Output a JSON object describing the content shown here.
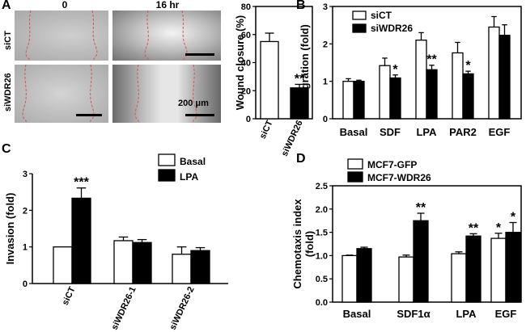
{
  "panel_letters": [
    "A",
    "B",
    "C",
    "D"
  ],
  "micrographs": {
    "time_labels": [
      "0",
      "16 hr"
    ],
    "row_labels": [
      "siCT",
      "siWDR26"
    ],
    "scale_label": "200 μm"
  },
  "chart_data": [
    {
      "id": "A-wound",
      "type": "bar",
      "categories": [
        "siCT",
        "siWDR26"
      ],
      "values": [
        55,
        22
      ],
      "errors": [
        6,
        2.5
      ],
      "fills": [
        "#ffffff",
        "#000000"
      ],
      "significance": [
        "",
        "**"
      ],
      "ylabel": "Wound closure (%)",
      "xlabel": "",
      "ylim": [
        0,
        80
      ],
      "yticks": [
        0,
        20,
        40,
        60,
        80
      ],
      "grid": false
    },
    {
      "id": "B-migration",
      "type": "bar",
      "categories": [
        "Basal",
        "SDF",
        "LPA",
        "PAR2",
        "EGF"
      ],
      "series": [
        {
          "name": "siCT",
          "color": "#ffffff",
          "values": [
            1.0,
            1.42,
            2.1,
            1.76,
            2.45
          ],
          "errors": [
            0.07,
            0.2,
            0.2,
            0.28,
            0.28
          ],
          "significance": [
            "",
            "",
            "",
            "",
            ""
          ]
        },
        {
          "name": "siWDR26",
          "color": "#000000",
          "values": [
            1.0,
            1.09,
            1.31,
            1.2,
            2.23
          ],
          "errors": [
            0.03,
            0.08,
            0.12,
            0.07,
            0.28
          ],
          "significance": [
            "",
            "*",
            "**",
            "*",
            ""
          ]
        }
      ],
      "ylabel": "Migration (fold)",
      "xlabel": "",
      "ylim": [
        0,
        3
      ],
      "yticks": [
        0,
        1,
        2,
        3
      ],
      "legend": "top-left",
      "grid": false
    },
    {
      "id": "C-invasion",
      "type": "bar",
      "categories": [
        "siCT",
        "siWDR26-1",
        "siWDR26-2"
      ],
      "series": [
        {
          "name": "Basal",
          "color": "#ffffff",
          "values": [
            1.0,
            1.17,
            0.8
          ],
          "errors": [
            0,
            0.1,
            0.2
          ],
          "significance": [
            "",
            "",
            ""
          ]
        },
        {
          "name": "LPA",
          "color": "#000000",
          "values": [
            2.33,
            1.12,
            0.9
          ],
          "errors": [
            0.28,
            0.08,
            0.08
          ],
          "significance": [
            "***",
            "",
            ""
          ]
        }
      ],
      "ylabel": "Invasion (fold)",
      "xlabel": "",
      "ylim": [
        0,
        3
      ],
      "yticks": [
        0,
        1,
        2,
        3
      ],
      "legend": "top-right",
      "grid": false
    },
    {
      "id": "D-chemotaxis",
      "type": "bar",
      "categories": [
        "Basal",
        "SDF1α",
        "LPA",
        "EGF"
      ],
      "series": [
        {
          "name": "MCF7-GFP",
          "color": "#ffffff",
          "values": [
            1.0,
            0.97,
            1.04,
            1.37
          ],
          "errors": [
            0.01,
            0.04,
            0.04,
            0.11
          ],
          "significance": [
            "",
            "",
            "",
            "*"
          ]
        },
        {
          "name": "MCF7-WDR26",
          "color": "#000000",
          "values": [
            1.15,
            1.75,
            1.42,
            1.5
          ],
          "errors": [
            0.03,
            0.16,
            0.05,
            0.21
          ],
          "significance": [
            "",
            "**",
            "**",
            "*"
          ]
        }
      ],
      "ylabel": "Chemotaxis index\n(fold)",
      "xlabel": "",
      "ylim": [
        0,
        2.5
      ],
      "yticks": [
        0,
        0.5,
        1.0,
        1.5,
        2.0,
        2.5
      ],
      "yticklabels": [
        "0.0",
        "0.5",
        "1.0",
        "1.5",
        "2.0",
        "2.5"
      ],
      "legend": "top-left",
      "grid": false
    }
  ]
}
